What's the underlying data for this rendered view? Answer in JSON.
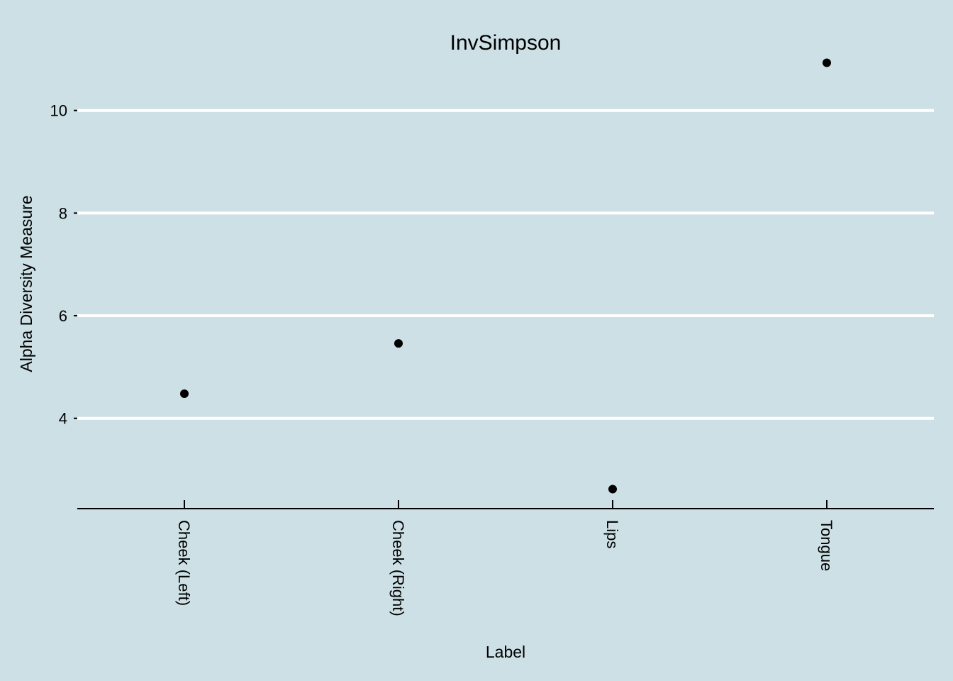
{
  "chart_data": {
    "type": "scatter",
    "title": "InvSimpson",
    "xlabel": "Label",
    "ylabel": "Alpha Diversity Measure",
    "categories": [
      "Cheek (Left)",
      "Cheek (Right)",
      "Lips",
      "Tongue"
    ],
    "values": [
      4.48,
      5.46,
      2.62,
      10.93
    ],
    "yticks": [
      4,
      6,
      8,
      10
    ],
    "ytick_labels": [
      "4",
      "6",
      "8",
      "10"
    ],
    "ylim": [
      2.24,
      11.6
    ],
    "grid": "horizontal-major",
    "legend": "none",
    "colors": {
      "background": "#cde0e6",
      "grid": "#ffffff",
      "point": "#000000",
      "axis": "#000000"
    }
  }
}
